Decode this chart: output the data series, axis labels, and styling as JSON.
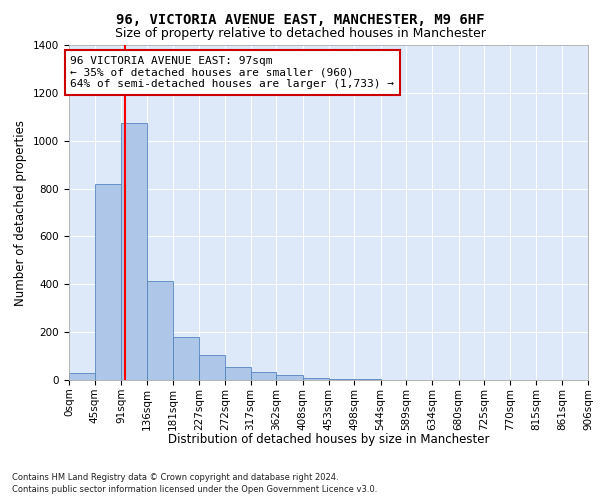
{
  "title": "96, VICTORIA AVENUE EAST, MANCHESTER, M9 6HF",
  "subtitle": "Size of property relative to detached houses in Manchester",
  "xlabel": "Distribution of detached houses by size in Manchester",
  "ylabel": "Number of detached properties",
  "footnote1": "Contains HM Land Registry data © Crown copyright and database right 2024.",
  "footnote2": "Contains public sector information licensed under the Open Government Licence v3.0.",
  "annotation_line1": "96 VICTORIA AVENUE EAST: 97sqm",
  "annotation_line2": "← 35% of detached houses are smaller (960)",
  "annotation_line3": "64% of semi-detached houses are larger (1,733) →",
  "bar_edges": [
    0,
    45,
    91,
    136,
    181,
    227,
    272,
    317,
    362,
    408,
    453,
    498,
    544,
    589,
    634,
    680,
    725,
    770,
    815,
    861,
    906
  ],
  "bar_heights": [
    30,
    820,
    1075,
    415,
    180,
    105,
    55,
    35,
    20,
    10,
    5,
    3,
    2,
    1,
    1,
    1,
    0,
    0,
    0,
    0
  ],
  "bar_color": "#aec6e8",
  "bar_edgecolor": "#5585c0",
  "red_line_x": 97,
  "ylim": [
    0,
    1400
  ],
  "yticks": [
    0,
    200,
    400,
    600,
    800,
    1000,
    1200,
    1400
  ],
  "xtick_labels": [
    "0sqm",
    "45sqm",
    "91sqm",
    "136sqm",
    "181sqm",
    "227sqm",
    "272sqm",
    "317sqm",
    "362sqm",
    "408sqm",
    "453sqm",
    "498sqm",
    "544sqm",
    "589sqm",
    "634sqm",
    "680sqm",
    "725sqm",
    "770sqm",
    "815sqm",
    "861sqm",
    "906sqm"
  ],
  "plot_bg_color": "#dde8f8",
  "annotation_box_facecolor": "#ffffff",
  "annotation_box_edgecolor": "#cc0000",
  "title_fontsize": 10,
  "subtitle_fontsize": 9,
  "axis_label_fontsize": 8.5,
  "tick_fontsize": 7.5,
  "annotation_fontsize": 8,
  "footnote_fontsize": 6
}
